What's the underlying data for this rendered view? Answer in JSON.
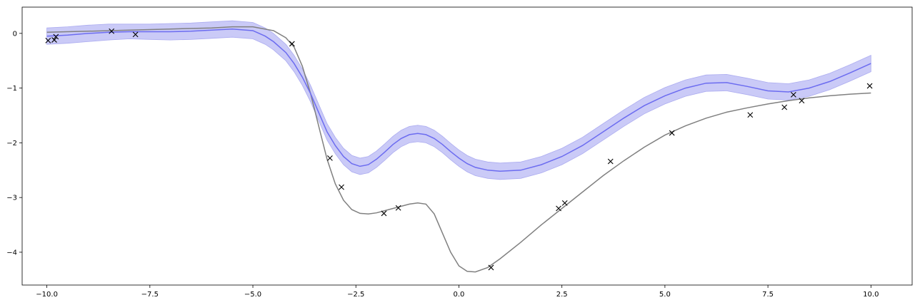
{
  "chart_data": {
    "type": "line",
    "title": "",
    "xlabel": "",
    "ylabel": "",
    "xlim": [
      -10.6,
      11.0
    ],
    "ylim": [
      -4.6,
      0.48
    ],
    "grid": false,
    "x_ticks": [
      -10.0,
      -7.5,
      -5.0,
      -2.5,
      0.0,
      2.5,
      5.0,
      7.5,
      10.0
    ],
    "x_tick_labels": [
      "−10.0",
      "−7.5",
      "−5.0",
      "−2.5",
      "0.0",
      "2.5",
      "5.0",
      "7.5",
      "10.0"
    ],
    "y_ticks": [
      0,
      -1,
      -2,
      -3,
      -4
    ],
    "y_tick_labels": [
      "0",
      "−1",
      "−2",
      "−3",
      "−4"
    ],
    "colors": {
      "true_function": "#808080",
      "predicted_mean": "#6c6cf0",
      "confidence_band": "#c8c8f7",
      "observations": "#000000"
    },
    "series": [
      {
        "kind": "line",
        "x": [
          -10,
          -9,
          -8,
          -7,
          -6,
          -5.5,
          -5,
          -4.5,
          -4.2,
          -4,
          -3.8,
          -3.6,
          -3.4,
          -3.2,
          -3,
          -2.8,
          -2.6,
          -2.4,
          -2.2,
          -2,
          -1.8,
          -1.5,
          -1.2,
          -1,
          -0.8,
          -0.6,
          -0.4,
          -0.2,
          0,
          0.2,
          0.4,
          0.7,
          1,
          1.5,
          2,
          2.5,
          3,
          3.5,
          4,
          4.5,
          5,
          5.5,
          6,
          6.5,
          7,
          7.5,
          8,
          8.5,
          9,
          9.5,
          10
        ],
        "y": [
          0.02,
          0.04,
          0.06,
          0.08,
          0.1,
          0.12,
          0.12,
          0.05,
          -0.08,
          -0.25,
          -0.6,
          -1.1,
          -1.7,
          -2.3,
          -2.75,
          -3.05,
          -3.22,
          -3.29,
          -3.3,
          -3.28,
          -3.24,
          -3.18,
          -3.12,
          -3.1,
          -3.12,
          -3.3,
          -3.65,
          -4.0,
          -4.25,
          -4.35,
          -4.36,
          -4.28,
          -4.12,
          -3.82,
          -3.5,
          -3.2,
          -2.9,
          -2.6,
          -2.33,
          -2.08,
          -1.86,
          -1.69,
          -1.55,
          -1.44,
          -1.36,
          -1.29,
          -1.23,
          -1.18,
          -1.14,
          -1.11,
          -1.09
        ]
      },
      {
        "kind": "mean_with_band",
        "x": [
          -10,
          -9.5,
          -9,
          -8.5,
          -8,
          -7.5,
          -7,
          -6.5,
          -6,
          -5.5,
          -5,
          -4.7,
          -4.5,
          -4.2,
          -4,
          -3.8,
          -3.6,
          -3.4,
          -3.2,
          -3,
          -2.8,
          -2.6,
          -2.4,
          -2.2,
          -2,
          -1.8,
          -1.6,
          -1.4,
          -1.2,
          -1,
          -0.8,
          -0.6,
          -0.4,
          -0.2,
          0,
          0.2,
          0.4,
          0.7,
          1,
          1.5,
          2,
          2.5,
          3,
          3.5,
          4,
          4.5,
          5,
          5.5,
          6,
          6.5,
          7,
          7.5,
          8,
          8.5,
          9,
          9.5,
          10
        ],
        "y": [
          -0.05,
          -0.03,
          0.0,
          0.02,
          0.03,
          0.03,
          0.03,
          0.04,
          0.06,
          0.08,
          0.05,
          -0.05,
          -0.15,
          -0.35,
          -0.55,
          -0.8,
          -1.1,
          -1.45,
          -1.8,
          -2.05,
          -2.25,
          -2.38,
          -2.43,
          -2.4,
          -2.3,
          -2.17,
          -2.03,
          -1.92,
          -1.85,
          -1.83,
          -1.85,
          -1.92,
          -2.03,
          -2.16,
          -2.28,
          -2.38,
          -2.45,
          -2.5,
          -2.52,
          -2.5,
          -2.4,
          -2.25,
          -2.05,
          -1.8,
          -1.55,
          -1.32,
          -1.14,
          -1.0,
          -0.91,
          -0.9,
          -0.97,
          -1.05,
          -1.07,
          -1.0,
          -0.88,
          -0.72,
          -0.55
        ],
        "lower": [
          -0.2,
          -0.18,
          -0.15,
          -0.12,
          -0.1,
          -0.11,
          -0.12,
          -0.11,
          -0.09,
          -0.07,
          -0.1,
          -0.2,
          -0.3,
          -0.5,
          -0.7,
          -0.95,
          -1.25,
          -1.6,
          -1.95,
          -2.2,
          -2.4,
          -2.53,
          -2.58,
          -2.55,
          -2.45,
          -2.32,
          -2.18,
          -2.07,
          -2.0,
          -1.98,
          -2.0,
          -2.07,
          -2.18,
          -2.31,
          -2.43,
          -2.53,
          -2.6,
          -2.65,
          -2.67,
          -2.65,
          -2.55,
          -2.4,
          -2.2,
          -1.95,
          -1.7,
          -1.47,
          -1.29,
          -1.15,
          -1.06,
          -1.05,
          -1.12,
          -1.2,
          -1.22,
          -1.15,
          -1.03,
          -0.87,
          -0.7
        ],
        "upper": [
          0.1,
          0.12,
          0.15,
          0.17,
          0.17,
          0.17,
          0.18,
          0.19,
          0.21,
          0.23,
          0.2,
          0.1,
          0.0,
          -0.2,
          -0.4,
          -0.65,
          -0.95,
          -1.3,
          -1.65,
          -1.9,
          -2.1,
          -2.23,
          -2.28,
          -2.25,
          -2.15,
          -2.02,
          -1.88,
          -1.77,
          -1.7,
          -1.68,
          -1.7,
          -1.77,
          -1.88,
          -2.01,
          -2.13,
          -2.23,
          -2.3,
          -2.35,
          -2.37,
          -2.35,
          -2.25,
          -2.1,
          -1.9,
          -1.65,
          -1.4,
          -1.17,
          -0.99,
          -0.85,
          -0.76,
          -0.75,
          -0.82,
          -0.9,
          -0.92,
          -0.85,
          -0.73,
          -0.57,
          -0.4
        ]
      },
      {
        "kind": "scatter",
        "x": [
          -9.97,
          -9.82,
          -9.78,
          -8.43,
          -7.85,
          -4.05,
          -3.13,
          -2.85,
          -1.82,
          -1.47,
          0.78,
          2.42,
          2.57,
          3.68,
          5.17,
          7.07,
          7.9,
          8.12,
          8.32,
          9.97
        ],
        "y": [
          -0.13,
          -0.12,
          -0.06,
          0.04,
          -0.02,
          -0.19,
          -2.28,
          -2.81,
          -3.29,
          -3.19,
          -4.28,
          -3.2,
          -3.1,
          -2.34,
          -1.82,
          -1.49,
          -1.35,
          -1.12,
          -1.23,
          -0.96
        ]
      }
    ]
  }
}
